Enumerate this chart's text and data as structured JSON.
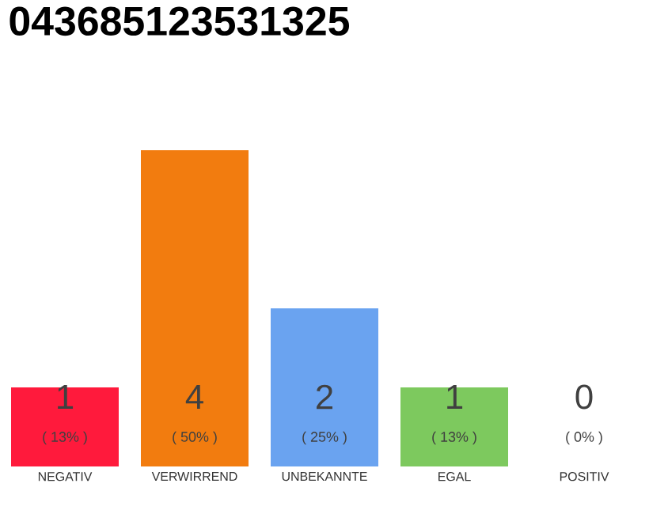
{
  "chart_data": {
    "type": "bar",
    "title": "043685123531325",
    "categories": [
      "NEGATIV",
      "VERWIRREND",
      "UNBEKANNTE",
      "EGAL",
      "POSITIV"
    ],
    "values": [
      1,
      4,
      2,
      1,
      0
    ],
    "colors": [
      "#ff1a3c",
      "#f27c0f",
      "#6aa3f0",
      "#7dc95e",
      "#e0e0e0"
    ],
    "value_labels": [
      "1",
      "4",
      "2",
      "1",
      "0"
    ],
    "annotations": [
      "( 13% )",
      "( 50% )",
      "( 25% )",
      "( 13% )",
      "( 0% )"
    ]
  }
}
